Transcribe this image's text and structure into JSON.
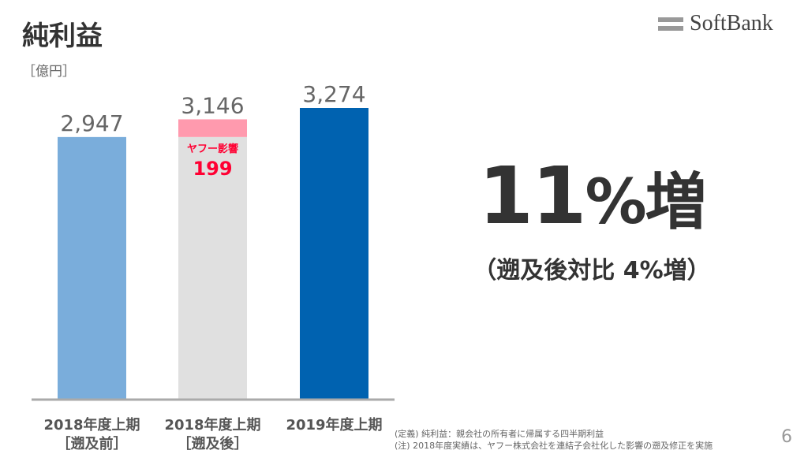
{
  "title": "純利益",
  "unit": "［億円］",
  "logo": "SoftBank",
  "highlight": {
    "value": "11",
    "suffix": "%増",
    "note": "（遡及後対比 4%増）"
  },
  "footnotes": [
    "(定義) 純利益：親会社の所有者に帰属する四半期利益",
    "(注) 2018年度実績は、ヤフー株式会社を連結子会社化した影響の遡及修正を実施"
  ],
  "page_number": "6",
  "chart_data": {
    "type": "bar",
    "categories": [
      "2018年度上期\n［遡及前］",
      "2018年度上期\n［遡及後］",
      "2019年度上期"
    ],
    "category_lines": [
      [
        "2018年度上期",
        "［遡及前］"
      ],
      [
        "2018年度上期",
        "［遡及後］"
      ],
      [
        "2019年度上期",
        ""
      ]
    ],
    "series": [
      {
        "values": [
          2947,
          2947,
          3274
        ],
        "colors": [
          "#7aaddb",
          "#e0e0e0",
          "#0062b0"
        ]
      },
      {
        "name": "ヤフー影響",
        "values": [
          0,
          199,
          0
        ],
        "color": "#ff9aae"
      }
    ],
    "totals": [
      "2,947",
      "3,146",
      "3,274"
    ],
    "annotation": {
      "label": "ヤフー影響",
      "value": "199",
      "color": "#ff0033"
    },
    "ylim": [
      0,
      3274
    ]
  }
}
